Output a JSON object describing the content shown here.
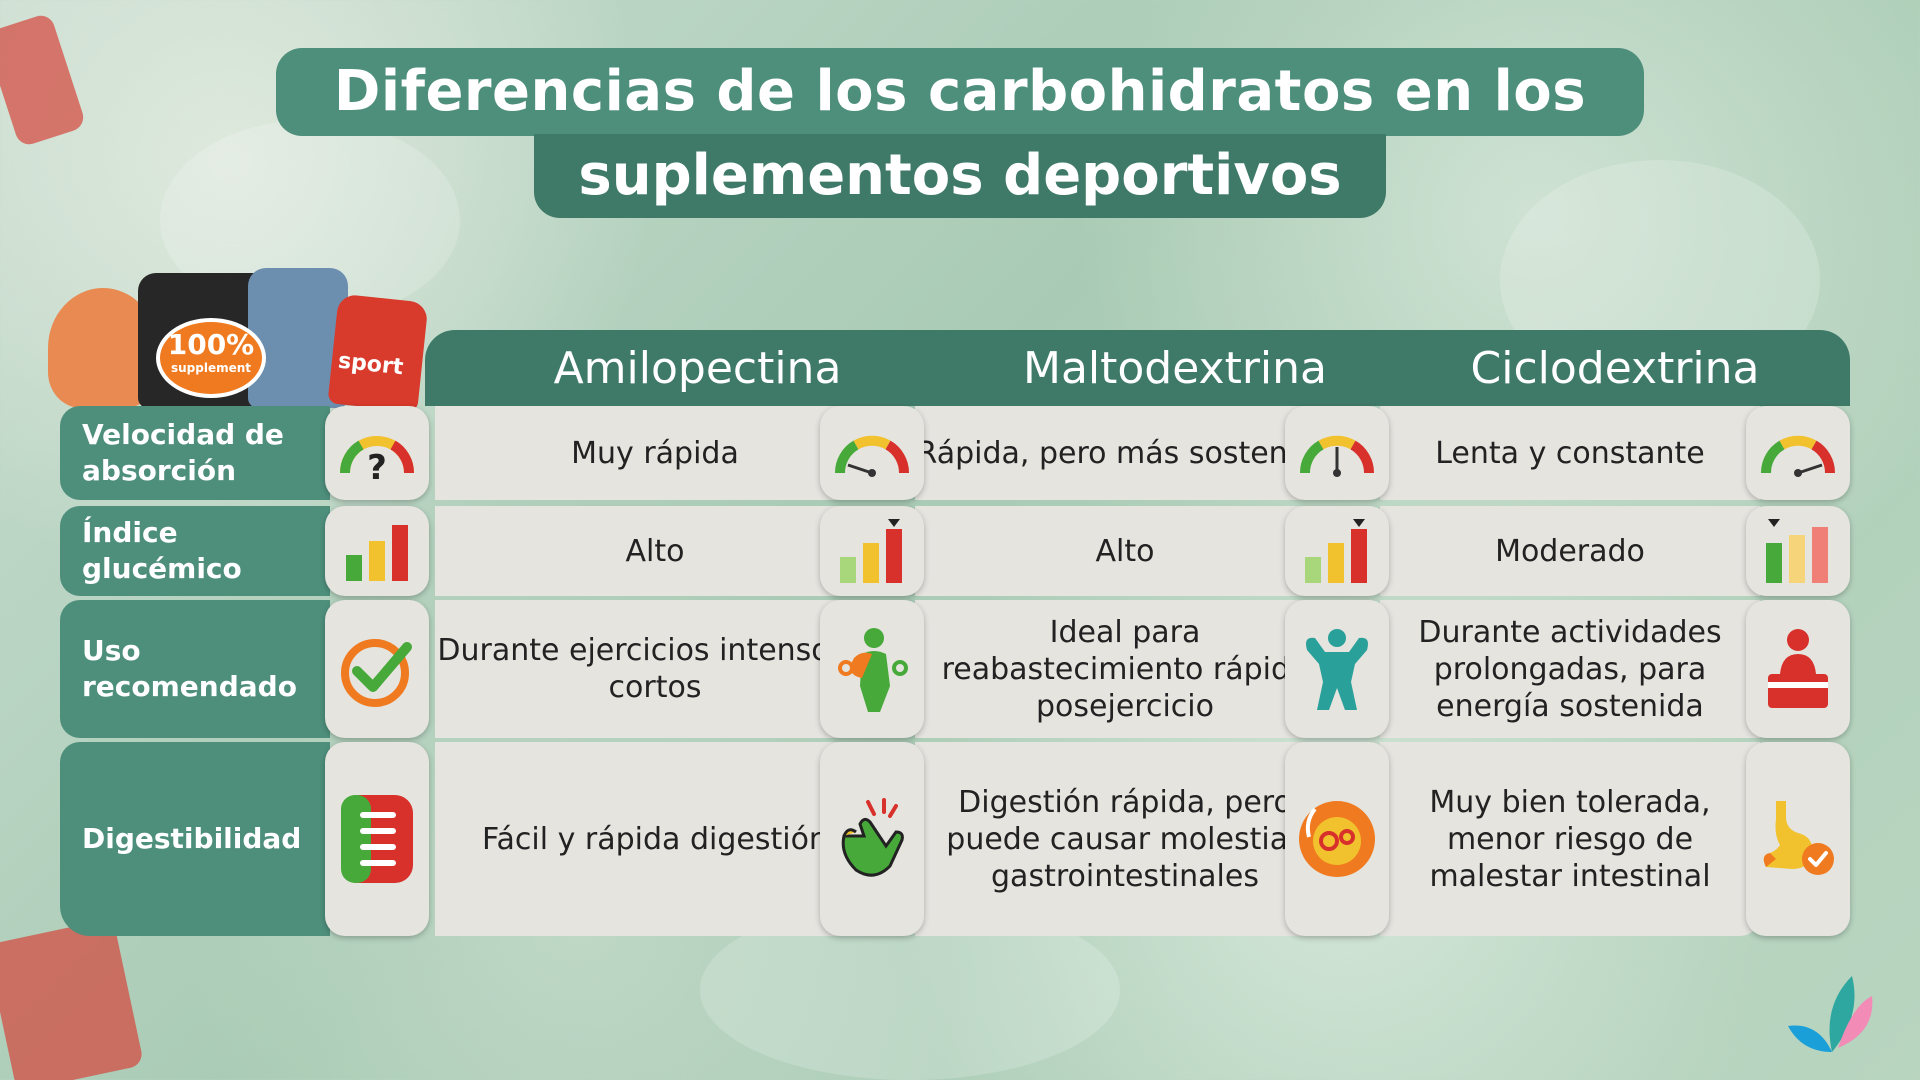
{
  "title": {
    "line1": "Diferencias de los carbohidratos en los",
    "line2": "suplementos deportivos"
  },
  "products": {
    "badge_big": "100%",
    "badge_small": "supplement",
    "sport_label": "sport"
  },
  "columns": [
    "Amilopectina",
    "Maltodextrina",
    "Ciclodextrina"
  ],
  "rows": [
    {
      "label": "Velocidad de absorción",
      "values": [
        "Muy rápida",
        "Rápida, pero más sostenida",
        "Lenta y constante"
      ]
    },
    {
      "label": "Índice glucémico",
      "values": [
        "Alto",
        "Alto",
        "Moderado"
      ]
    },
    {
      "label": "Uso recomendado",
      "values": [
        "Durante ejercicios intensos y cortos",
        "Ideal para reabastecimiento rápido posejercicio",
        "Durante actividades prolongadas, para energía sostenida"
      ]
    },
    {
      "label": "Digestibilidad",
      "values": [
        "Fácil y rápida digestión",
        "Digestión rápida, pero puede causar molestias gastrointestinales",
        "Muy bien tolerada, menor riesgo de malestar intestinal"
      ]
    }
  ],
  "colors": {
    "header_green": "#3f7a68",
    "label_green": "#4e8f7c",
    "cell_bg": "#e5e4df",
    "bar_red": "#d8312b",
    "bar_yellow": "#f2c12e",
    "bar_green": "#47a93a"
  },
  "icons": {
    "row_label_icons": [
      "question-gauge-icon",
      "bar-chart-icon",
      "check-icon",
      "intestine-icon"
    ],
    "amilopectina": [
      "gauge-fast-icon",
      "bar-chart-high-icon",
      "athlete-icon",
      "finger-snap-icon"
    ],
    "maltodextrina": [
      "gauge-medium-icon",
      "bar-chart-high-icon",
      "muscle-icon",
      "stomach-gears-icon"
    ],
    "ciclodextrina": [
      "gauge-slow-icon",
      "bar-chart-low-icon",
      "desk-person-icon",
      "stomach-check-icon"
    ]
  }
}
